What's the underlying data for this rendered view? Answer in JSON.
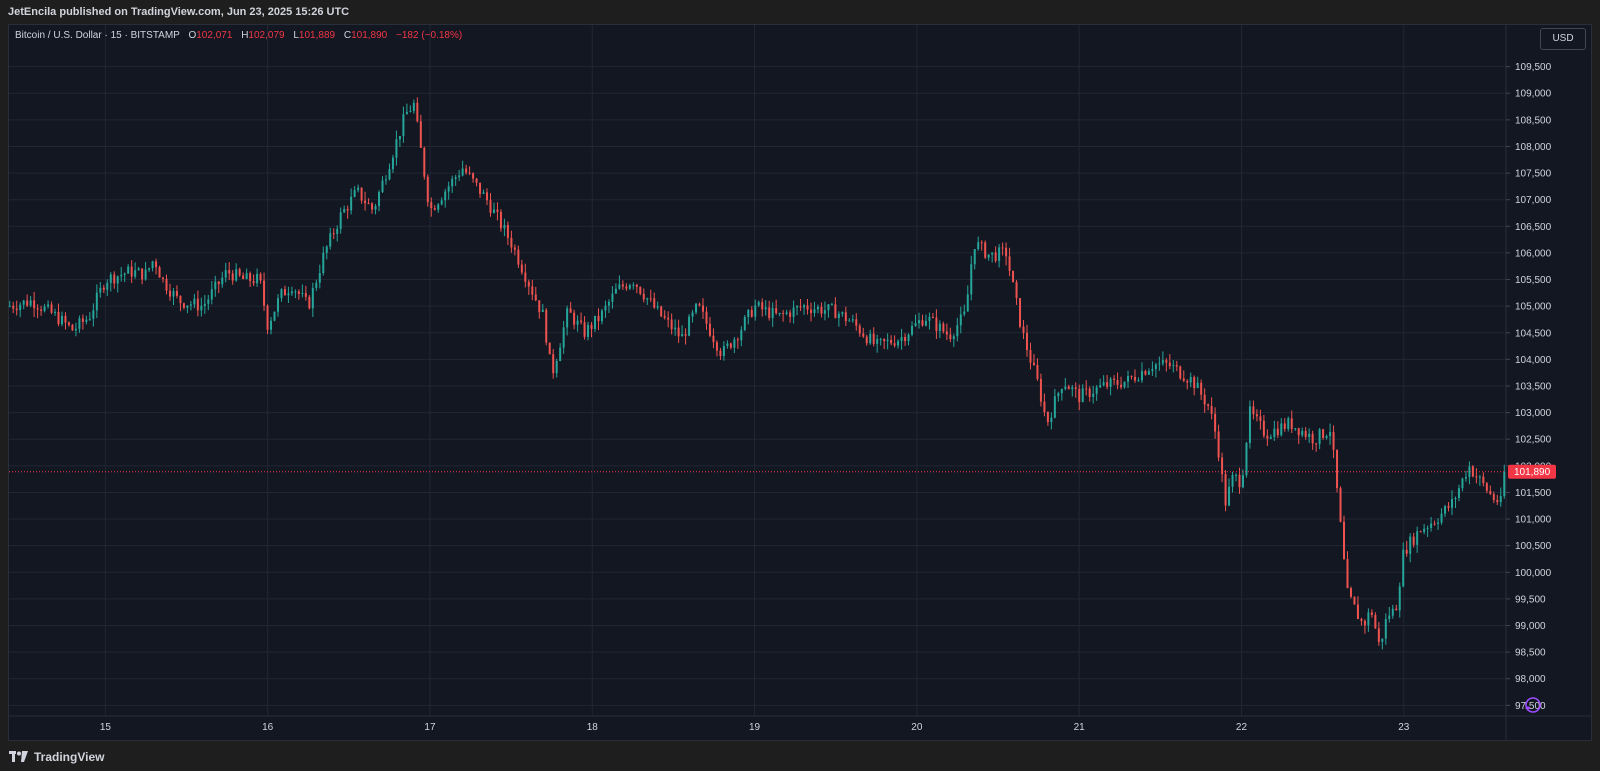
{
  "header": {
    "published_text": "JetEncila published on TradingView.com, Jun 23, 2025 15:26 UTC"
  },
  "footer": {
    "brand": "TradingView"
  },
  "legend": {
    "symbol": "Bitcoin / U.S. Dollar · 15 · BITSTAMP",
    "open_label": "O",
    "open_value": "102,071",
    "high_label": "H",
    "high_value": "102,079",
    "low_label": "L",
    "low_value": "101,889",
    "close_label": "C",
    "close_value": "101,890",
    "change": "−182 (−0.18%)"
  },
  "currency_button": "USD",
  "price_badge": "101,890",
  "colors": {
    "up": "#26a69a",
    "down": "#ef5350",
    "grid": "#232633",
    "background": "#131722",
    "price_line": "#f23645"
  },
  "chart_data": {
    "type": "candlestick",
    "symbol": "Bitcoin / U.S. Dollar",
    "interval": "15",
    "exchange": "BITSTAMP",
    "x_tick_labels": [
      "15",
      "16",
      "17",
      "18",
      "19",
      "20",
      "21",
      "22",
      "23"
    ],
    "x_range": [
      14.4,
      23.63
    ],
    "y_tick_labels": [
      "97,500",
      "98,000",
      "98,500",
      "99,000",
      "99,500",
      "100,000",
      "100,500",
      "101,000",
      "101,500",
      "102,000",
      "102,500",
      "103,000",
      "103,500",
      "104,000",
      "104,500",
      "105,000",
      "105,500",
      "106,000",
      "106,500",
      "107,000",
      "107,500",
      "108,000",
      "108,500",
      "109,000",
      "109,500"
    ],
    "y_range": [
      97300,
      109850
    ],
    "current_price": 101890,
    "grid": true,
    "price_path": [
      [
        14.4,
        105000
      ],
      [
        14.55,
        105100
      ],
      [
        14.7,
        104800
      ],
      [
        14.8,
        104550
      ],
      [
        14.9,
        104800
      ],
      [
        15.0,
        105500
      ],
      [
        15.15,
        105650
      ],
      [
        15.25,
        105600
      ],
      [
        15.3,
        105900
      ],
      [
        15.35,
        105500
      ],
      [
        15.45,
        105100
      ],
      [
        15.6,
        105000
      ],
      [
        15.75,
        105650
      ],
      [
        15.85,
        105500
      ],
      [
        15.95,
        105500
      ],
      [
        16.0,
        104650
      ],
      [
        16.08,
        105200
      ],
      [
        16.15,
        105400
      ],
      [
        16.25,
        105000
      ],
      [
        16.35,
        106000
      ],
      [
        16.45,
        106700
      ],
      [
        16.55,
        107150
      ],
      [
        16.65,
        106800
      ],
      [
        16.75,
        107700
      ],
      [
        16.85,
        108600
      ],
      [
        16.9,
        108800
      ],
      [
        16.95,
        107800
      ],
      [
        17.0,
        106800
      ],
      [
        17.1,
        107200
      ],
      [
        17.2,
        107600
      ],
      [
        17.35,
        107000
      ],
      [
        17.5,
        106200
      ],
      [
        17.6,
        105500
      ],
      [
        17.7,
        104800
      ],
      [
        17.75,
        103700
      ],
      [
        17.85,
        104900
      ],
      [
        17.95,
        104500
      ],
      [
        18.05,
        104800
      ],
      [
        18.15,
        105300
      ],
      [
        18.25,
        105500
      ],
      [
        18.4,
        104900
      ],
      [
        18.55,
        104400
      ],
      [
        18.65,
        105000
      ],
      [
        18.8,
        104100
      ],
      [
        18.9,
        104500
      ],
      [
        19.0,
        105000
      ],
      [
        19.15,
        104800
      ],
      [
        19.3,
        105000
      ],
      [
        19.5,
        104900
      ],
      [
        19.6,
        104700
      ],
      [
        19.75,
        104250
      ],
      [
        19.9,
        104400
      ],
      [
        20.05,
        104800
      ],
      [
        20.2,
        104450
      ],
      [
        20.3,
        104850
      ],
      [
        20.35,
        106200
      ],
      [
        20.45,
        105950
      ],
      [
        20.55,
        106000
      ],
      [
        20.65,
        104500
      ],
      [
        20.75,
        103500
      ],
      [
        20.8,
        102800
      ],
      [
        20.9,
        103600
      ],
      [
        21.0,
        103300
      ],
      [
        21.15,
        103500
      ],
      [
        21.3,
        103600
      ],
      [
        21.45,
        103900
      ],
      [
        21.55,
        103900
      ],
      [
        21.7,
        103600
      ],
      [
        21.8,
        103100
      ],
      [
        21.85,
        102500
      ],
      [
        21.9,
        101300
      ],
      [
        21.95,
        101800
      ],
      [
        22.0,
        101700
      ],
      [
        22.05,
        103000
      ],
      [
        22.15,
        102600
      ],
      [
        22.3,
        102800
      ],
      [
        22.45,
        102500
      ],
      [
        22.55,
        102700
      ],
      [
        22.6,
        101200
      ],
      [
        22.65,
        99600
      ],
      [
        22.75,
        99000
      ],
      [
        22.8,
        99300
      ],
      [
        22.85,
        98600
      ],
      [
        22.9,
        99200
      ],
      [
        22.95,
        99300
      ],
      [
        23.0,
        100400
      ],
      [
        23.1,
        100800
      ],
      [
        23.2,
        101000
      ],
      [
        23.3,
        101300
      ],
      [
        23.4,
        102000
      ],
      [
        23.5,
        101600
      ],
      [
        23.55,
        101400
      ],
      [
        23.6,
        101300
      ],
      [
        23.63,
        101890
      ]
    ]
  }
}
